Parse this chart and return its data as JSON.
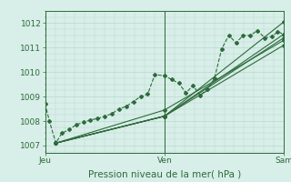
{
  "title": "Pression niveau de la mer( hPa )",
  "bg_color": "#d8eee8",
  "grid_color": "#b8d8cc",
  "line_color": "#2d6b3c",
  "spine_color": "#2d6b3c",
  "ylim": [
    1006.7,
    1012.5
  ],
  "yticks": [
    1007,
    1008,
    1009,
    1010,
    1011,
    1012
  ],
  "xlim": [
    0.0,
    1.0
  ],
  "x_day_labels": [
    [
      "Jeu",
      0.0
    ],
    [
      "Ven",
      0.5
    ],
    [
      "Sam",
      1.0
    ]
  ],
  "series": [
    [
      0.0,
      1008.7,
      0.018,
      1008.0,
      0.045,
      1007.1,
      0.07,
      1007.5,
      0.1,
      1007.65,
      0.13,
      1007.85,
      0.16,
      1007.95,
      0.19,
      1008.05,
      0.22,
      1008.1,
      0.25,
      1008.2,
      0.28,
      1008.3,
      0.31,
      1008.5,
      0.34,
      1008.6,
      0.37,
      1008.8,
      0.4,
      1009.0,
      0.43,
      1009.1,
      0.46,
      1009.9,
      0.5,
      1009.85,
      0.53,
      1009.7,
      0.56,
      1009.55,
      0.59,
      1009.15,
      0.62,
      1009.45,
      0.65,
      1009.05,
      0.68,
      1009.3,
      0.71,
      1009.75,
      0.74,
      1010.95,
      0.77,
      1011.5,
      0.8,
      1011.2,
      0.83,
      1011.5,
      0.86,
      1011.5,
      0.89,
      1011.7,
      0.92,
      1011.4,
      0.95,
      1011.45,
      0.975,
      1011.65,
      1.0,
      1011.55
    ],
    [
      0.045,
      1007.1,
      0.5,
      1008.2,
      1.0,
      1011.4
    ],
    [
      0.045,
      1007.1,
      0.5,
      1008.2,
      1.0,
      1011.1
    ],
    [
      0.045,
      1007.1,
      0.5,
      1008.2,
      1.0,
      1012.05
    ],
    [
      0.045,
      1007.1,
      0.5,
      1008.45,
      1.0,
      1011.3
    ],
    [
      0.045,
      1007.1,
      0.5,
      1008.2,
      1.0,
      1011.55
    ]
  ],
  "vlines": [
    0.0,
    0.5,
    1.0
  ],
  "title_fontsize": 7.5,
  "tick_fontsize": 6.5
}
